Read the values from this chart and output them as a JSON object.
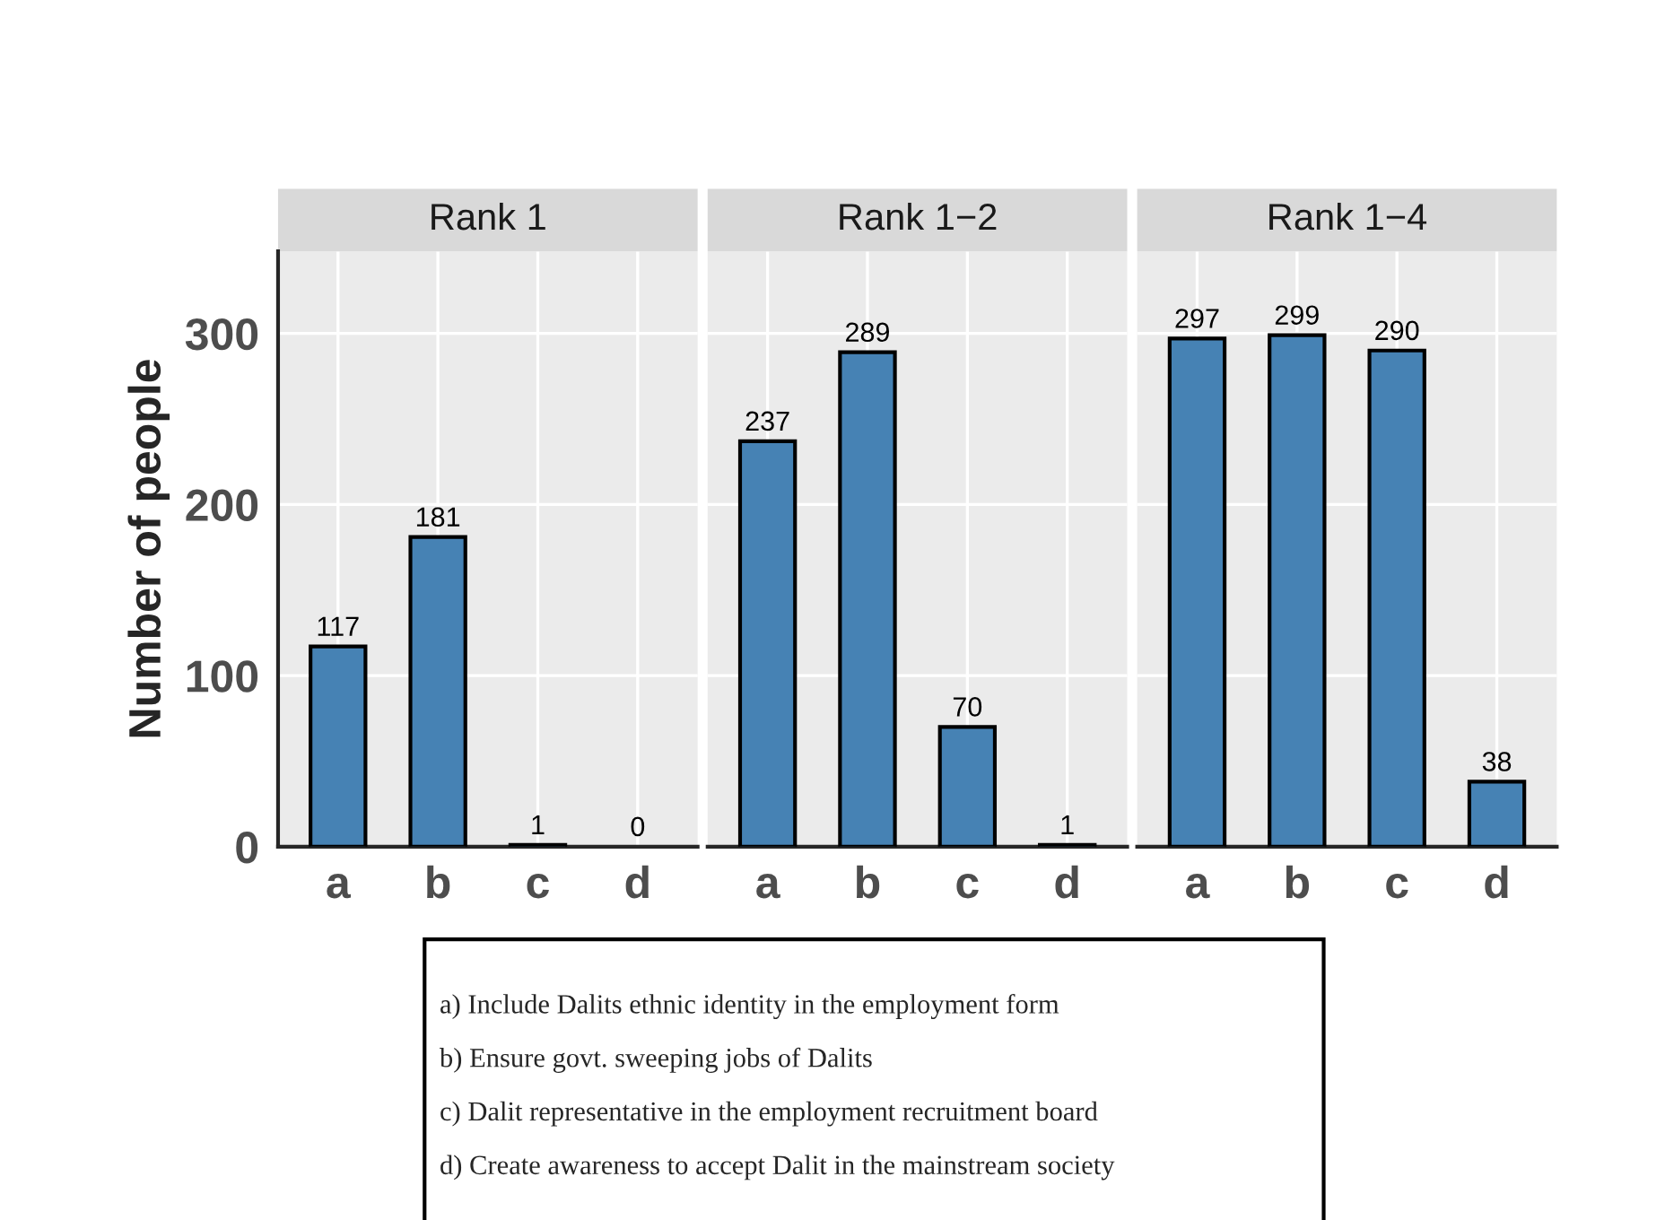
{
  "chart_data": [
    {
      "type": "bar",
      "title": "Rank 1",
      "ylabel": "Number of people",
      "categories": [
        "a",
        "b",
        "c",
        "d"
      ],
      "values": [
        117,
        181,
        1,
        0
      ],
      "color": "#4682b4",
      "data_labels": true,
      "ylim": [
        0,
        348
      ],
      "yticks": [
        0,
        100,
        200,
        300
      ],
      "grid": true,
      "annotations": [
        "a) Include Dalits ethnic identity in the employment form",
        "b) Ensure govt. sweeping jobs of Dalits",
        "c) Dalit representative in the employment recruitment board",
        "d) Create awareness to accept Dalit in the mainstream society"
      ]
    },
    {
      "type": "bar",
      "title": "Rank 1−2",
      "categories": [
        "a",
        "b",
        "c",
        "d"
      ],
      "values": [
        237,
        289,
        70,
        1
      ],
      "color": "#4682b4",
      "data_labels": true,
      "ylim": [
        0,
        348
      ],
      "yticks": [
        0,
        100,
        200,
        300
      ],
      "grid": true,
      "tick_labels": "x"
    },
    {
      "type": "bar",
      "title": "Rank 1−4",
      "categories": [
        "a",
        "b",
        "c",
        "d"
      ],
      "values": [
        297,
        299,
        290,
        38
      ],
      "color": "#4682b4",
      "data_labels": true,
      "ylim": [
        0,
        348
      ],
      "yticks": [
        0,
        100,
        200,
        300
      ],
      "grid": true,
      "tick_labels": "x"
    }
  ]
}
